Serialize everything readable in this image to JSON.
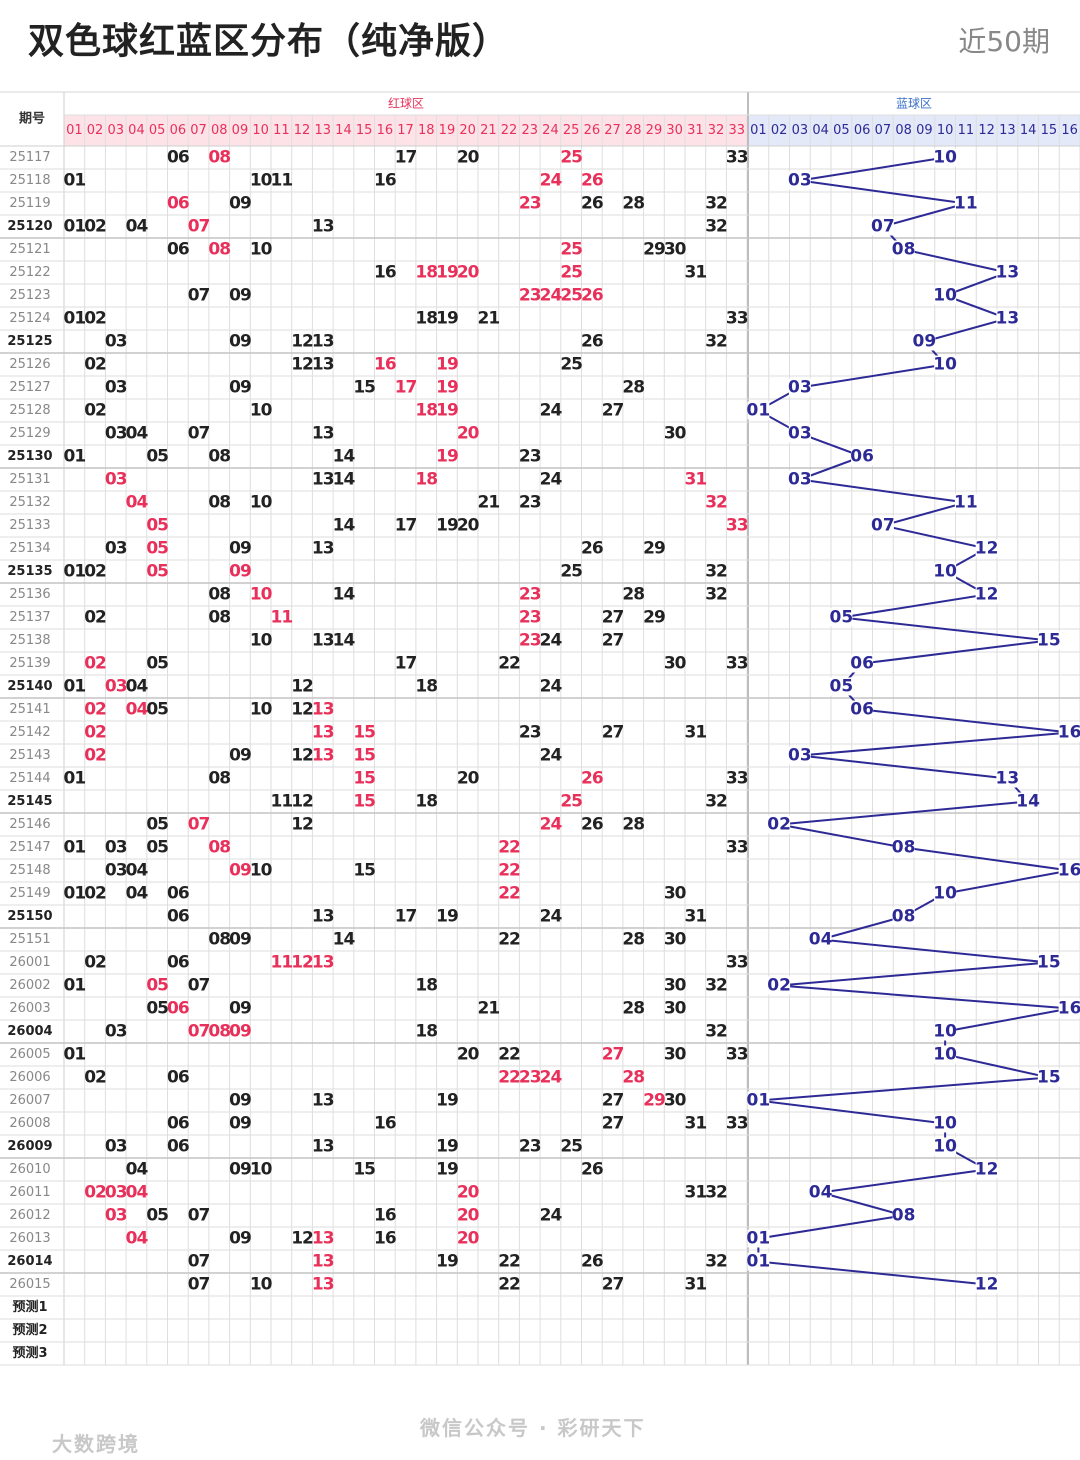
{
  "header": {
    "title": "双色球红蓝区分布（纯净版）",
    "subtitle": "近50期"
  },
  "chart_data": {
    "type": "table",
    "period_header": "期号",
    "red_zone_label": "红球区",
    "blue_zone_label": "蓝球区",
    "red_columns": [
      "01",
      "02",
      "03",
      "04",
      "05",
      "06",
      "07",
      "08",
      "09",
      "10",
      "11",
      "12",
      "13",
      "14",
      "15",
      "16",
      "17",
      "18",
      "19",
      "20",
      "21",
      "22",
      "23",
      "24",
      "25",
      "26",
      "27",
      "28",
      "29",
      "30",
      "31",
      "32",
      "33"
    ],
    "blue_columns": [
      "01",
      "02",
      "03",
      "04",
      "05",
      "06",
      "07",
      "08",
      "09",
      "10",
      "11",
      "12",
      "13",
      "14",
      "15",
      "16"
    ],
    "rows": [
      {
        "period": "25117",
        "red": [
          6,
          8,
          17,
          20,
          25,
          33
        ],
        "hot": [
          8,
          25
        ],
        "blue": 10
      },
      {
        "period": "25118",
        "red": [
          1,
          10,
          11,
          16,
          24,
          26
        ],
        "hot": [
          24,
          26
        ],
        "blue": 3
      },
      {
        "period": "25119",
        "red": [
          6,
          9,
          23,
          26,
          28,
          32
        ],
        "hot": [
          6,
          23
        ],
        "blue": 11
      },
      {
        "period": "25120",
        "red": [
          1,
          2,
          4,
          7,
          13,
          32
        ],
        "hot": [
          7
        ],
        "blue": 7
      },
      {
        "period": "25121",
        "red": [
          6,
          8,
          10,
          25,
          29,
          30
        ],
        "hot": [
          8,
          25
        ],
        "blue": 8
      },
      {
        "period": "25122",
        "red": [
          16,
          18,
          19,
          20,
          25,
          31
        ],
        "hot": [
          18,
          19,
          20,
          25
        ],
        "blue": 13
      },
      {
        "period": "25123",
        "red": [
          7,
          9,
          23,
          24,
          25,
          26
        ],
        "hot": [
          23,
          24,
          25,
          26
        ],
        "blue": 10
      },
      {
        "period": "25124",
        "red": [
          1,
          2,
          18,
          19,
          21,
          33
        ],
        "hot": [],
        "blue": 13
      },
      {
        "period": "25125",
        "red": [
          3,
          9,
          12,
          13,
          26,
          32
        ],
        "hot": [],
        "blue": 9
      },
      {
        "period": "25126",
        "red": [
          2,
          12,
          13,
          16,
          19,
          25
        ],
        "hot": [
          16,
          19
        ],
        "blue": 10
      },
      {
        "period": "25127",
        "red": [
          3,
          9,
          15,
          17,
          19,
          28
        ],
        "hot": [
          17,
          19
        ],
        "blue": 3
      },
      {
        "period": "25128",
        "red": [
          2,
          10,
          18,
          19,
          24,
          27
        ],
        "hot": [
          18,
          19
        ],
        "blue": 1
      },
      {
        "period": "25129",
        "red": [
          3,
          4,
          7,
          13,
          20,
          30
        ],
        "hot": [
          20
        ],
        "blue": 3
      },
      {
        "period": "25130",
        "red": [
          1,
          5,
          8,
          14,
          19,
          23
        ],
        "hot": [
          19
        ],
        "blue": 6
      },
      {
        "period": "25131",
        "red": [
          3,
          13,
          14,
          18,
          24,
          31
        ],
        "hot": [
          3,
          18,
          31
        ],
        "blue": 3
      },
      {
        "period": "25132",
        "red": [
          4,
          8,
          10,
          21,
          23,
          32
        ],
        "hot": [
          4,
          32
        ],
        "blue": 11
      },
      {
        "period": "25133",
        "red": [
          5,
          14,
          17,
          19,
          20,
          33
        ],
        "hot": [
          5,
          33
        ],
        "blue": 7
      },
      {
        "period": "25134",
        "red": [
          3,
          5,
          9,
          13,
          26,
          29
        ],
        "hot": [
          5
        ],
        "blue": 12
      },
      {
        "period": "25135",
        "red": [
          1,
          2,
          5,
          9,
          25,
          32
        ],
        "hot": [
          5,
          9
        ],
        "blue": 10
      },
      {
        "period": "25136",
        "red": [
          8,
          10,
          14,
          23,
          28,
          32
        ],
        "hot": [
          10,
          23
        ],
        "blue": 12
      },
      {
        "period": "25137",
        "red": [
          2,
          8,
          11,
          23,
          27,
          29
        ],
        "hot": [
          11,
          23
        ],
        "blue": 5
      },
      {
        "period": "25138",
        "red": [
          10,
          13,
          14,
          23,
          24,
          27
        ],
        "hot": [
          23
        ],
        "blue": 15
      },
      {
        "period": "25139",
        "red": [
          2,
          5,
          17,
          22,
          30,
          33
        ],
        "hot": [
          2
        ],
        "blue": 6
      },
      {
        "period": "25140",
        "red": [
          1,
          3,
          4,
          12,
          18,
          24
        ],
        "hot": [
          3
        ],
        "blue": 5
      },
      {
        "period": "25141",
        "red": [
          2,
          4,
          5,
          10,
          12,
          13
        ],
        "hot": [
          2,
          4,
          13
        ],
        "blue": 6
      },
      {
        "period": "25142",
        "red": [
          2,
          13,
          15,
          23,
          27,
          31
        ],
        "hot": [
          2,
          13,
          15
        ],
        "blue": 16
      },
      {
        "period": "25143",
        "red": [
          2,
          9,
          12,
          13,
          15,
          24
        ],
        "hot": [
          2,
          13,
          15
        ],
        "blue": 3
      },
      {
        "period": "25144",
        "red": [
          1,
          8,
          15,
          20,
          26,
          33
        ],
        "hot": [
          15,
          26
        ],
        "blue": 13
      },
      {
        "period": "25145",
        "red": [
          11,
          12,
          15,
          18,
          25,
          32
        ],
        "hot": [
          15,
          25
        ],
        "blue": 14
      },
      {
        "period": "25146",
        "red": [
          5,
          7,
          12,
          24,
          26,
          28
        ],
        "hot": [
          7,
          24
        ],
        "blue": 2
      },
      {
        "period": "25147",
        "red": [
          1,
          3,
          5,
          8,
          22,
          33
        ],
        "hot": [
          8,
          22
        ],
        "blue": 8
      },
      {
        "period": "25148",
        "red": [
          3,
          4,
          9,
          10,
          15,
          22
        ],
        "hot": [
          9,
          22
        ],
        "blue": 16
      },
      {
        "period": "25149",
        "red": [
          1,
          2,
          4,
          6,
          22,
          30
        ],
        "hot": [
          22
        ],
        "blue": 10
      },
      {
        "period": "25150",
        "red": [
          6,
          13,
          17,
          19,
          24,
          31
        ],
        "hot": [],
        "blue": 8
      },
      {
        "period": "25151",
        "red": [
          8,
          9,
          14,
          22,
          28,
          30
        ],
        "hot": [],
        "blue": 4
      },
      {
        "period": "26001",
        "red": [
          2,
          6,
          11,
          12,
          13,
          33
        ],
        "hot": [
          11,
          12,
          13
        ],
        "blue": 15
      },
      {
        "period": "26002",
        "red": [
          1,
          5,
          7,
          18,
          30,
          32
        ],
        "hot": [
          5
        ],
        "blue": 2
      },
      {
        "period": "26003",
        "red": [
          5,
          6,
          9,
          21,
          28,
          30
        ],
        "hot": [
          6
        ],
        "blue": 16
      },
      {
        "period": "26004",
        "red": [
          3,
          7,
          8,
          9,
          18,
          32
        ],
        "hot": [
          7,
          8,
          9
        ],
        "blue": 10
      },
      {
        "period": "26005",
        "red": [
          1,
          20,
          22,
          27,
          30,
          33
        ],
        "hot": [
          27
        ],
        "blue": 10
      },
      {
        "period": "26006",
        "red": [
          2,
          6,
          22,
          23,
          24,
          28
        ],
        "hot": [
          22,
          23,
          24,
          28
        ],
        "blue": 15
      },
      {
        "period": "26007",
        "red": [
          9,
          13,
          19,
          27,
          29,
          30
        ],
        "hot": [
          29
        ],
        "blue": 1
      },
      {
        "period": "26008",
        "red": [
          6,
          9,
          16,
          27,
          31,
          33
        ],
        "hot": [],
        "blue": 10
      },
      {
        "period": "26009",
        "red": [
          3,
          6,
          13,
          19,
          23,
          25
        ],
        "hot": [],
        "blue": 10
      },
      {
        "period": "26010",
        "red": [
          4,
          9,
          10,
          15,
          19,
          26
        ],
        "hot": [],
        "blue": 12
      },
      {
        "period": "26011",
        "red": [
          2,
          3,
          4,
          20,
          31,
          32
        ],
        "hot": [
          2,
          3,
          4,
          20
        ],
        "blue": 4
      },
      {
        "period": "26012",
        "red": [
          3,
          5,
          7,
          16,
          20,
          24
        ],
        "hot": [
          3,
          20
        ],
        "blue": 8
      },
      {
        "period": "26013",
        "red": [
          4,
          9,
          12,
          13,
          16,
          20
        ],
        "hot": [
          4,
          13,
          20
        ],
        "blue": 1
      },
      {
        "period": "26014",
        "red": [
          7,
          13,
          19,
          22,
          26,
          32
        ],
        "hot": [
          13
        ],
        "blue": 1
      },
      {
        "period": "26015",
        "red": [
          7,
          10,
          13,
          22,
          27,
          31
        ],
        "hot": [
          13
        ],
        "blue": 12
      },
      {
        "period": "预测1",
        "red": [],
        "hot": [],
        "blue": null
      },
      {
        "period": "预测2",
        "red": [],
        "hot": [],
        "blue": null
      },
      {
        "period": "预测3",
        "red": [],
        "hot": [],
        "blue": null
      }
    ],
    "colors": {
      "normal": "#222222",
      "hot": "#e8305a",
      "blue": "#2d2a96",
      "red_header_bg": "#fde3e8",
      "blue_header_bg": "#e3e9f8",
      "grid": "#dedede"
    }
  },
  "watermarks": {
    "center": "微信公众号 · 彩研天下",
    "left": "大数跨境"
  }
}
